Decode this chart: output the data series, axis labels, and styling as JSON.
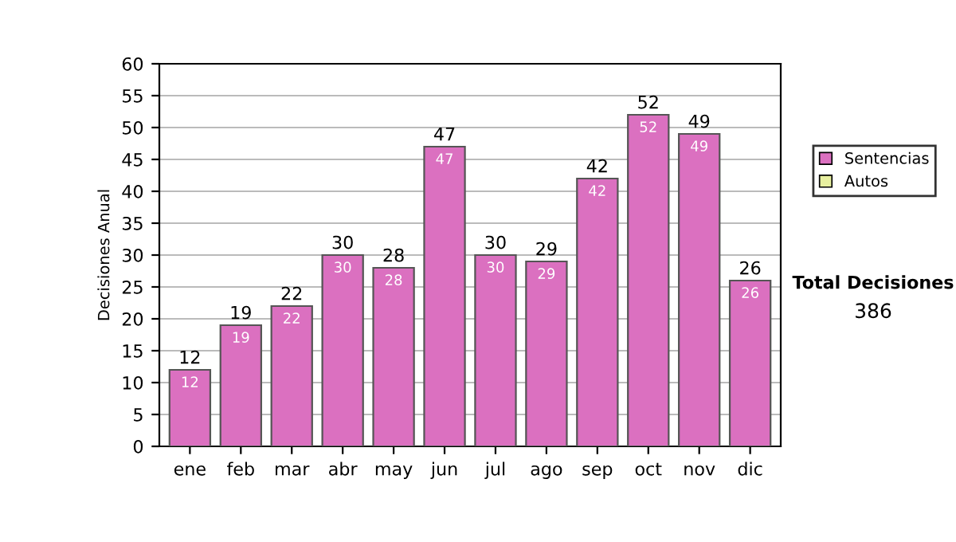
{
  "chart_data": {
    "type": "bar",
    "ylabel": "Decisiones Anual",
    "categories": [
      "ene",
      "feb",
      "mar",
      "abr",
      "may",
      "jun",
      "jul",
      "ago",
      "sep",
      "oct",
      "nov",
      "dic"
    ],
    "series": [
      {
        "name": "Sentencias",
        "color": "#db70c0",
        "values": [
          12,
          19,
          22,
          30,
          28,
          47,
          30,
          29,
          42,
          52,
          49,
          26
        ]
      },
      {
        "name": "Autos",
        "color": "#e8f0a0",
        "values": [
          null,
          null,
          null,
          null,
          null,
          null,
          null,
          null,
          null,
          null,
          null,
          null
        ]
      }
    ],
    "stacked": true,
    "data_labels": true,
    "totals": [
      "12",
      "19",
      "22",
      "30",
      "28",
      "47",
      "30",
      "29",
      "42",
      "52",
      "49",
      "26"
    ],
    "ylim": [
      0,
      60
    ],
    "yticks": [
      0,
      5,
      10,
      15,
      20,
      25,
      30,
      35,
      40,
      45,
      50,
      55,
      60
    ],
    "grid": "y",
    "legend": "right",
    "annotations": [
      "Total Decisiones",
      "386"
    ]
  }
}
